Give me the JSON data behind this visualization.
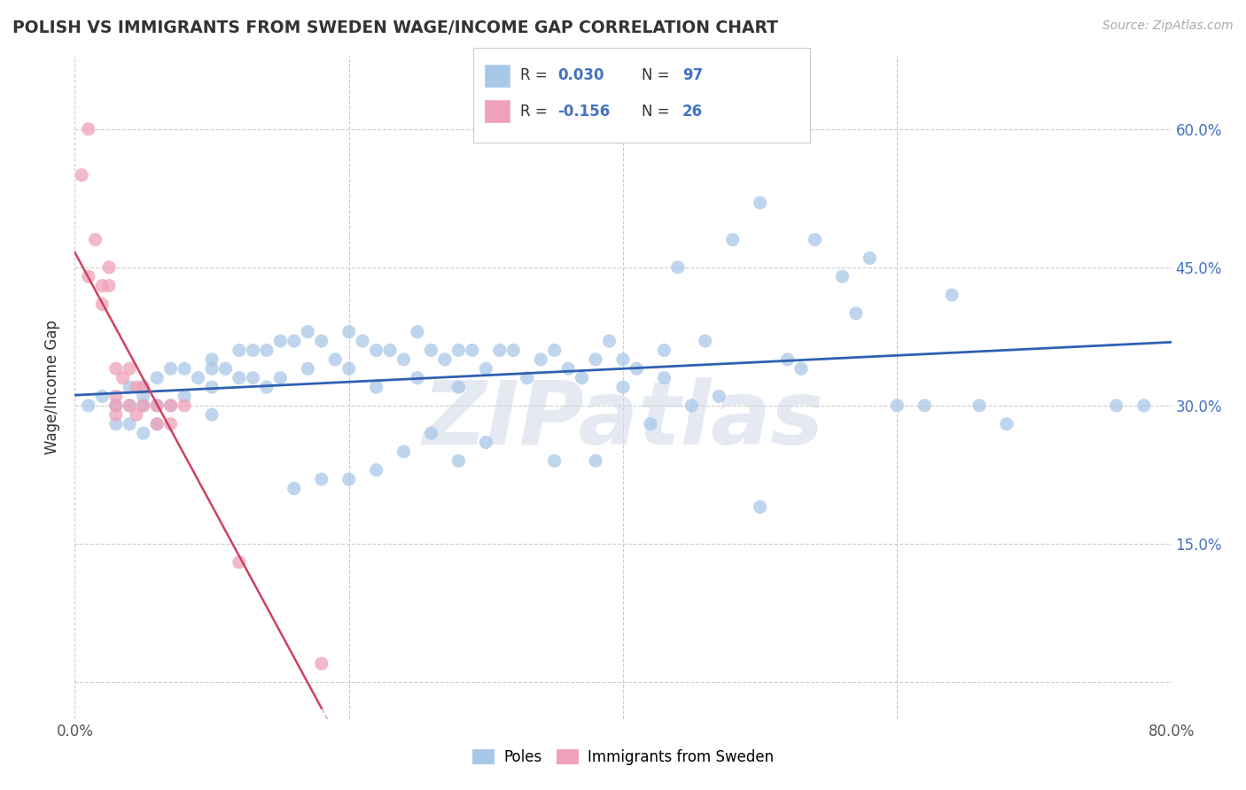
{
  "title": "POLISH VS IMMIGRANTS FROM SWEDEN WAGE/INCOME GAP CORRELATION CHART",
  "source": "Source: ZipAtlas.com",
  "ylabel": "Wage/Income Gap",
  "xlim": [
    0.0,
    0.8
  ],
  "ylim": [
    -0.04,
    0.68
  ],
  "yticks": [
    0.0,
    0.15,
    0.3,
    0.45,
    0.6
  ],
  "right_ytick_labels": [
    "",
    "15.0%",
    "30.0%",
    "45.0%",
    "60.0%"
  ],
  "xticks": [
    0.0,
    0.2,
    0.4,
    0.6,
    0.8
  ],
  "xtick_labels": [
    "0.0%",
    "",
    "",
    "",
    "80.0%"
  ],
  "poles_color": "#a8c8e8",
  "poles_line_color": "#3060b0",
  "immigrants_color": "#f0a0b8",
  "immigrants_line_color": "#d04060",
  "immigrants_dash_color": "#e0b0c0",
  "watermark": "ZIPatlas",
  "background_color": "#ffffff",
  "grid_color": "#cccccc",
  "poles_x": [
    0.01,
    0.02,
    0.03,
    0.03,
    0.04,
    0.04,
    0.04,
    0.05,
    0.05,
    0.05,
    0.05,
    0.06,
    0.06,
    0.06,
    0.07,
    0.07,
    0.08,
    0.08,
    0.09,
    0.1,
    0.1,
    0.1,
    0.1,
    0.11,
    0.12,
    0.12,
    0.13,
    0.13,
    0.14,
    0.14,
    0.15,
    0.15,
    0.16,
    0.17,
    0.17,
    0.18,
    0.19,
    0.2,
    0.2,
    0.21,
    0.22,
    0.22,
    0.23,
    0.24,
    0.25,
    0.25,
    0.26,
    0.27,
    0.28,
    0.28,
    0.29,
    0.3,
    0.31,
    0.32,
    0.33,
    0.34,
    0.35,
    0.36,
    0.37,
    0.38,
    0.39,
    0.4,
    0.41,
    0.42,
    0.43,
    0.44,
    0.45,
    0.47,
    0.48,
    0.5,
    0.52,
    0.54,
    0.56,
    0.58,
    0.6,
    0.62,
    0.64,
    0.66,
    0.68,
    0.5,
    0.53,
    0.57,
    0.43,
    0.46,
    0.4,
    0.38,
    0.35,
    0.3,
    0.28,
    0.26,
    0.24,
    0.22,
    0.2,
    0.18,
    0.16,
    0.78,
    0.76
  ],
  "poles_y": [
    0.3,
    0.31,
    0.3,
    0.28,
    0.32,
    0.3,
    0.28,
    0.32,
    0.31,
    0.3,
    0.27,
    0.33,
    0.3,
    0.28,
    0.34,
    0.3,
    0.34,
    0.31,
    0.33,
    0.35,
    0.34,
    0.32,
    0.29,
    0.34,
    0.36,
    0.33,
    0.36,
    0.33,
    0.36,
    0.32,
    0.37,
    0.33,
    0.37,
    0.38,
    0.34,
    0.37,
    0.35,
    0.38,
    0.34,
    0.37,
    0.36,
    0.32,
    0.36,
    0.35,
    0.38,
    0.33,
    0.36,
    0.35,
    0.36,
    0.32,
    0.36,
    0.34,
    0.36,
    0.36,
    0.33,
    0.35,
    0.36,
    0.34,
    0.33,
    0.35,
    0.37,
    0.32,
    0.34,
    0.28,
    0.33,
    0.45,
    0.3,
    0.31,
    0.48,
    0.19,
    0.35,
    0.48,
    0.44,
    0.46,
    0.3,
    0.3,
    0.42,
    0.3,
    0.28,
    0.52,
    0.34,
    0.4,
    0.36,
    0.37,
    0.35,
    0.24,
    0.24,
    0.26,
    0.24,
    0.27,
    0.25,
    0.23,
    0.22,
    0.22,
    0.21,
    0.3,
    0.3
  ],
  "immigrants_x": [
    0.005,
    0.01,
    0.01,
    0.015,
    0.02,
    0.02,
    0.025,
    0.025,
    0.03,
    0.03,
    0.03,
    0.03,
    0.035,
    0.04,
    0.04,
    0.045,
    0.045,
    0.05,
    0.05,
    0.06,
    0.06,
    0.07,
    0.07,
    0.08,
    0.12,
    0.18
  ],
  "immigrants_y": [
    0.55,
    0.6,
    0.44,
    0.48,
    0.41,
    0.43,
    0.43,
    0.45,
    0.34,
    0.31,
    0.3,
    0.29,
    0.33,
    0.34,
    0.3,
    0.32,
    0.29,
    0.32,
    0.3,
    0.3,
    0.28,
    0.3,
    0.28,
    0.3,
    0.13,
    0.02
  ]
}
